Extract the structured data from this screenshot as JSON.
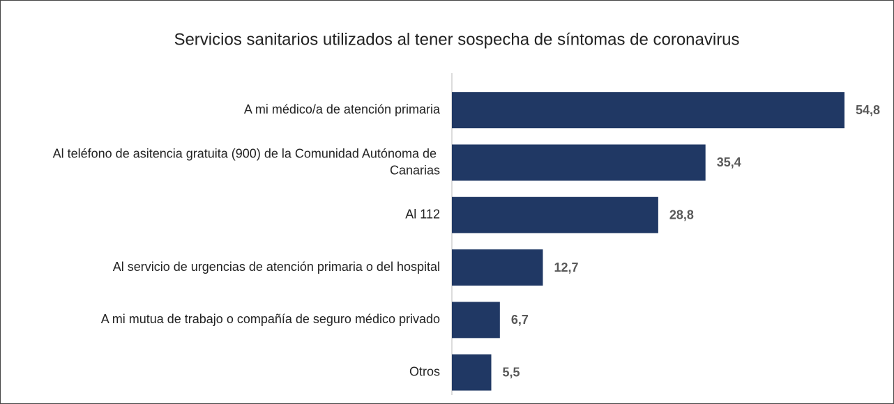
{
  "chart_data": {
    "type": "bar",
    "orientation": "horizontal",
    "title": "Servicios sanitarios utilizados al tener sospecha de síntomas de coronavirus",
    "categories": [
      "A mi médico/a de atención primaria",
      "Al teléfono de asitencia gratuita (900) de la Comunidad Autónoma de Canarias",
      "Al 112",
      "Al servicio de urgencias de atención primaria o del hospital",
      "A mi mutua de trabajo o compañía de seguro médico privado",
      "Otros"
    ],
    "values": [
      54.8,
      35.4,
      28.8,
      12.7,
      6.7,
      5.5
    ],
    "value_labels": [
      "54,8",
      "35,4",
      "28,8",
      "12,7",
      "6,7",
      "5,5"
    ],
    "color": "#203864"
  }
}
